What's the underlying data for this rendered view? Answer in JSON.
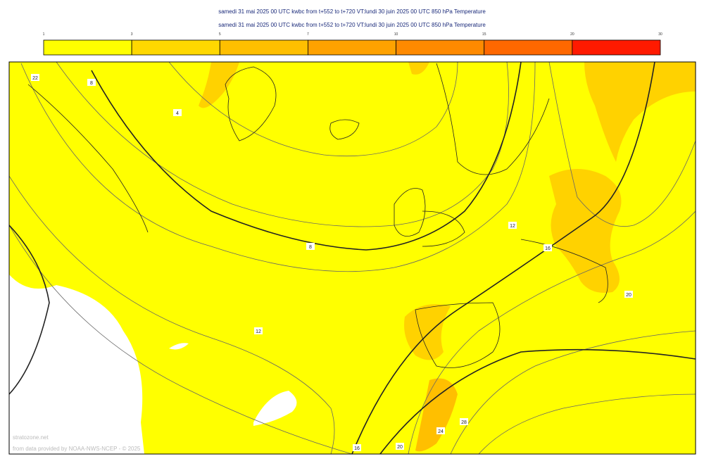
{
  "header": {
    "lines": [
      "samedi 31 mai 2025 00 UTC kwbc from t+552 to t+720 VT:lundi 30 juin 2025 00 UTC 850 hPa  Temperature",
      "samedi 31 mai 2025 00 UTC kwbc from t+552 to t+720 VT:lundi 30 juin 2025 00 UTC 850 hPa  Temperature"
    ]
  },
  "legend": {
    "ticks": [
      "1",
      "3",
      "5",
      "7",
      "10",
      "15",
      "20",
      "30"
    ],
    "colors": [
      "#ffff00",
      "#ffd800",
      "#ffbf00",
      "#ffa200",
      "#ff8a00",
      "#ff6800",
      "#ff1a00",
      "#d00000"
    ]
  },
  "map": {
    "contour_labels": [
      "22",
      "8",
      "4",
      "8",
      "12",
      "12",
      "16",
      "20",
      "16",
      "20",
      "24",
      "28"
    ],
    "watermark": "stratozone.net",
    "credit": "from data provided by NOAA-NWS-NCEP - © 2025"
  }
}
